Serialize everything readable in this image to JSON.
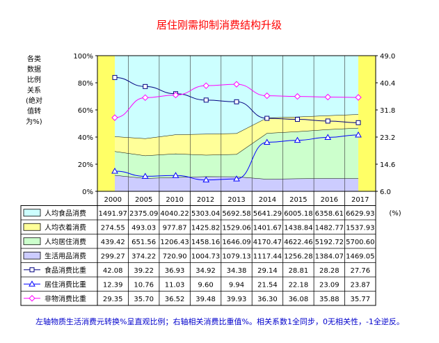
{
  "colors": {
    "band_food": "#ccffff",
    "band_clothing": "#ffff99",
    "band_housing": "#ccffcc",
    "band_goods": "#ccccff",
    "side_band": "#ffff66",
    "food_line": "#000080",
    "housing_line": "#0000ff",
    "nonmaterial_line": "#ff00ff",
    "title": "#ff0000",
    "footnote": "#0000cc"
  },
  "chart_data": {
    "type": "area",
    "title": "居住刚需抑制消费结构升级",
    "ylabel_left": "各类数据比例关系(绝对值转为%)",
    "left_axis_ticks": [
      "100%",
      "80%",
      "60%",
      "40%",
      "20%",
      "0%"
    ],
    "right_axis_ticks": [
      "49.0",
      "40.4",
      "31.8",
      "23.2",
      "14.6",
      "6.0"
    ],
    "ylim_left": [
      0,
      100
    ],
    "ylim_right": [
      6.0,
      49.0
    ],
    "categories": [
      "2000",
      "2005",
      "2010",
      "2012",
      "2013",
      "2014",
      "2015",
      "2016",
      "2017"
    ],
    "unit_label": "(%)",
    "stacked_series": [
      {
        "name": "人均食品消费",
        "values": [
          "1491.97",
          "2375.09",
          "4040.22",
          "5303.04",
          "5692.58",
          "5641.29",
          "6005.18",
          "6358.61",
          "6629.93"
        ]
      },
      {
        "name": "人均衣着消费",
        "values": [
          "274.55",
          "493.03",
          "977.87",
          "1425.82",
          "1529.06",
          "1401.67",
          "1438.84",
          "1482.77",
          "1537.93"
        ]
      },
      {
        "name": "人均居住消费",
        "values": [
          "439.42",
          "651.56",
          "1206.43",
          "1458.16",
          "1646.09",
          "4170.47",
          "4622.46",
          "5192.72",
          "5700.60"
        ]
      },
      {
        "name": "生活用品消费",
        "values": [
          "299.27",
          "374.22",
          "720.90",
          "1004.73",
          "1079.13",
          "1117.44",
          "1256.28",
          "1384.07",
          "1469.05"
        ]
      }
    ],
    "line_series": [
      {
        "name": "食品消费比重",
        "marker": "square",
        "values": [
          "42.08",
          "39.22",
          "36.93",
          "34.92",
          "34.38",
          "29.14",
          "28.81",
          "28.28",
          "27.76"
        ]
      },
      {
        "name": "居住消费比重",
        "marker": "triangle",
        "values": [
          "12.39",
          "10.76",
          "11.03",
          "9.60",
          "9.94",
          "21.54",
          "22.18",
          "23.09",
          "23.87"
        ]
      },
      {
        "name": "非物消费比重",
        "marker": "diamond",
        "values": [
          "29.35",
          "35.70",
          "36.52",
          "39.48",
          "39.93",
          "36.30",
          "36.08",
          "35.88",
          "35.77"
        ]
      }
    ],
    "footnote": "左轴物质生活消费元转换%呈直观比例；右轴相关消费比重值%。相关系数1全同步，0无相关性，-1全逆反。"
  }
}
